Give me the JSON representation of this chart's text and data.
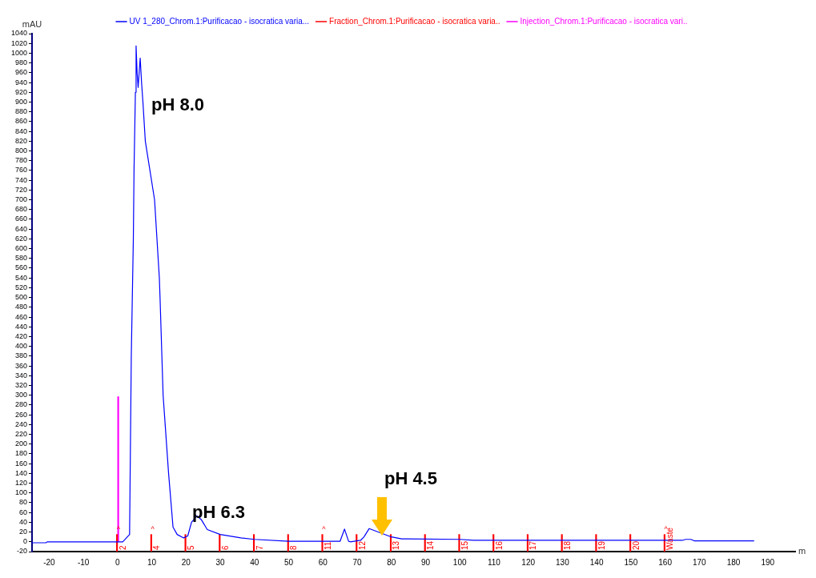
{
  "chart_data": {
    "type": "line",
    "xlabel": "m",
    "ylabel": "mAU",
    "xlim": [
      -25,
      198
    ],
    "ylim": [
      -20,
      1040
    ],
    "xticks": [
      -20,
      -10,
      0,
      10,
      20,
      30,
      40,
      50,
      60,
      70,
      80,
      90,
      100,
      110,
      120,
      130,
      140,
      150,
      160,
      170,
      180,
      190
    ],
    "yticks": [
      -20,
      0,
      20,
      40,
      60,
      80,
      100,
      120,
      140,
      160,
      180,
      200,
      220,
      240,
      260,
      280,
      300,
      320,
      340,
      360,
      380,
      400,
      420,
      440,
      460,
      480,
      500,
      520,
      540,
      560,
      580,
      600,
      620,
      640,
      660,
      680,
      700,
      720,
      740,
      760,
      780,
      800,
      820,
      840,
      860,
      880,
      900,
      920,
      940,
      960,
      980,
      1000,
      1020,
      1040
    ],
    "grid": false,
    "legend": "top",
    "marker": "none",
    "series": [
      {
        "name": "UV 1_280_Chrom.1:Purificacao - isocratica varia...",
        "color": "#0000ff",
        "x": [
          -25,
          -21,
          -20.5,
          0,
          1.5,
          3.5,
          4.0,
          4.6,
          4.8,
          5.2,
          5.4,
          5.7,
          6.0,
          6.6,
          7.0,
          7.4,
          8.1,
          10.8,
          12.2,
          12.4,
          13.3,
          14.9,
          16.2,
          17.4,
          19.3,
          20.5,
          21.6,
          23.2,
          24.5,
          26.2,
          30,
          36,
          40,
          50,
          64,
          65,
          66.3,
          67.5,
          68,
          71,
          72,
          73.5,
          80,
          83,
          100,
          104,
          165,
          166,
          167.5,
          168.5,
          186
        ],
        "values": [
          -2,
          -2,
          0,
          0,
          0,
          15,
          380,
          620,
          760,
          920,
          1015,
          960,
          930,
          990,
          940,
          900,
          820,
          700,
          540,
          500,
          300,
          140,
          30,
          15,
          8,
          12,
          40,
          53,
          45,
          25,
          15,
          8,
          5,
          1,
          1,
          1,
          26,
          1,
          0,
          3,
          10,
          27,
          10,
          6,
          5,
          3,
          3,
          5,
          5,
          2,
          2
        ]
      },
      {
        "name": "Fraction_Chrom.1:Purificacao - isocratica varia..",
        "color": "#ff0000",
        "type": "bar",
        "base": [
          -20,
          -20,
          -20,
          -20,
          -20,
          -20,
          -20,
          -20,
          -20,
          -20,
          -20,
          -20,
          -20,
          -20,
          -20,
          -20,
          -20
        ],
        "x": [
          0,
          10,
          20,
          30,
          40,
          50,
          60,
          70,
          80,
          90,
          100,
          110,
          120,
          130,
          140,
          150,
          160
        ],
        "values": [
          35,
          35,
          35,
          35,
          35,
          35,
          35,
          35,
          35,
          35,
          35,
          35,
          35,
          35,
          35,
          35,
          35
        ]
      },
      {
        "name": "Injection_Chrom.1:Purificacao - isocratica vari..",
        "color": "#ff00ff",
        "type": "bar",
        "x": [
          0
        ],
        "values": [
          297
        ]
      }
    ],
    "annotations": [
      {
        "text": "pH 8.0",
        "x": 6.6,
        "y": 990
      },
      {
        "text": "pH 6.3",
        "x": 23.2,
        "y": 53
      },
      {
        "text": "pH 4.5",
        "x": 73.5,
        "y": 27
      },
      {
        "text": "^",
        "x": 0,
        "y": 15
      },
      {
        "text": "^",
        "x": 10,
        "y": 15
      },
      {
        "text": "^",
        "x": 60,
        "y": 15
      },
      {
        "text": "^",
        "x": 160,
        "y": 15
      },
      {
        "text": "2",
        "x": 0,
        "y": -20
      },
      {
        "text": "4",
        "x": 10,
        "y": -20
      },
      {
        "text": "5",
        "x": 20,
        "y": -20
      },
      {
        "text": "6",
        "x": 30,
        "y": -20
      },
      {
        "text": "7",
        "x": 40,
        "y": -20
      },
      {
        "text": "8",
        "x": 50,
        "y": -20
      },
      {
        "text": "11",
        "x": 60,
        "y": -20
      },
      {
        "text": "12",
        "x": 70,
        "y": -20
      },
      {
        "text": "13",
        "x": 80,
        "y": -20
      },
      {
        "text": "14",
        "x": 90,
        "y": -20
      },
      {
        "text": "15",
        "x": 100,
        "y": -20
      },
      {
        "text": "16",
        "x": 110,
        "y": -20
      },
      {
        "text": "17",
        "x": 120,
        "y": -20
      },
      {
        "text": "18",
        "x": 130,
        "y": -20
      },
      {
        "text": "19",
        "x": 140,
        "y": -20
      },
      {
        "text": "20",
        "x": 150,
        "y": -20
      },
      {
        "text": "Waste",
        "x": 160,
        "y": -20
      }
    ]
  }
}
